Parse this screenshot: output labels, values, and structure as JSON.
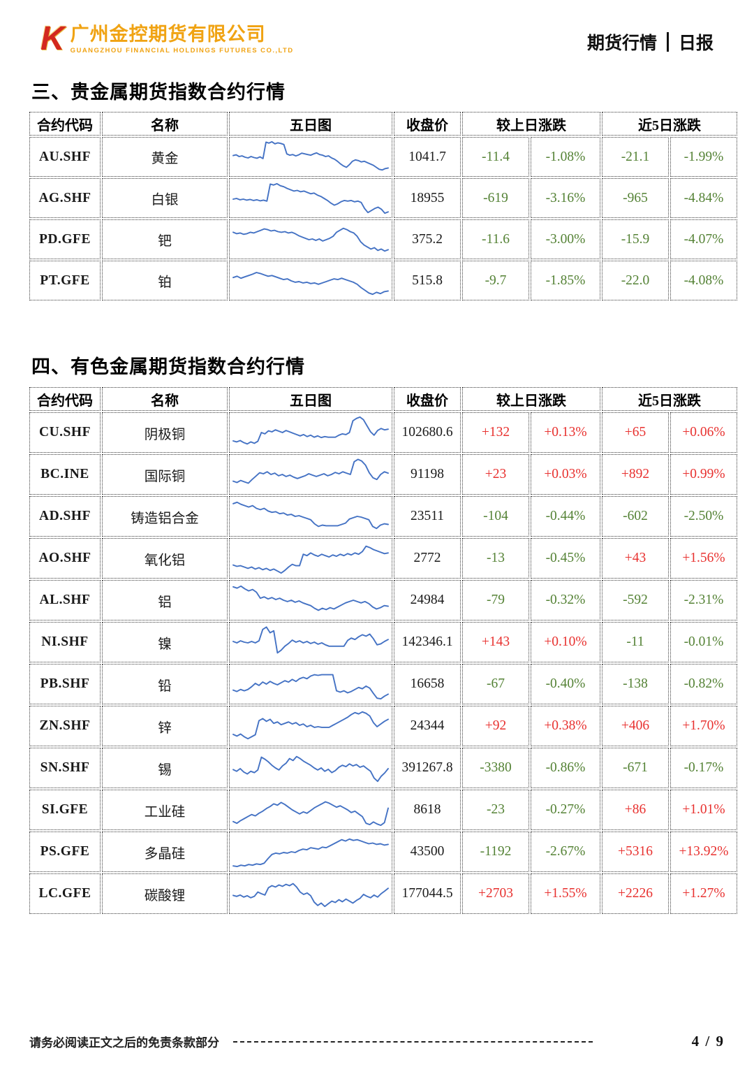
{
  "header": {
    "logo_letter": "K",
    "company_name": "广州金控期货有限公司",
    "company_name_en": "GUANGZHOU FINANCIAL HOLDINGS FUTURES CO.,LTD",
    "report_type": "期货行情",
    "report_period": "日报"
  },
  "colors": {
    "up_red": "#e8312f",
    "down_green": "#548235",
    "sparkline_blue": "#4472c4",
    "brand_gold": "#f0a313",
    "logo_red": "#d3281e"
  },
  "columns": [
    {
      "label": "合约代码",
      "span": 1
    },
    {
      "label": "名称",
      "span": 1
    },
    {
      "label": "五日图",
      "span": 1
    },
    {
      "label": "收盘价",
      "span": 1
    },
    {
      "label": "较上日涨跌",
      "span": 2
    },
    {
      "label": "近5日涨跌",
      "span": 2
    }
  ],
  "sections": [
    {
      "title": "三、贵金属期货指数合约行情",
      "rows": [
        {
          "code": "AU.SHF",
          "name": "黄金",
          "close": "1041.7",
          "chg": "-11.4",
          "chg_pct": "-1.08%",
          "chg5": "-21.1",
          "chg5_pct": "-1.99%",
          "spark": [
            55,
            57,
            52,
            54,
            50,
            48,
            52,
            49,
            47,
            51,
            46,
            95,
            92,
            96,
            90,
            93,
            91,
            88,
            60,
            56,
            58,
            54,
            57,
            62,
            60,
            58,
            56,
            60,
            63,
            58,
            56,
            52,
            54,
            48,
            44,
            38,
            30,
            24,
            20,
            28,
            38,
            42,
            40,
            36,
            38,
            34,
            30,
            26,
            20,
            14,
            12,
            16,
            18
          ]
        },
        {
          "code": "AG.SHF",
          "name": "白银",
          "close": "18955",
          "chg": "-619",
          "chg_pct": "-3.16%",
          "chg5": "-965",
          "chg5_pct": "-4.84%",
          "spark": [
            48,
            50,
            46,
            48,
            45,
            47,
            44,
            46,
            43,
            45,
            42,
            93,
            90,
            94,
            88,
            85,
            80,
            76,
            72,
            74,
            70,
            72,
            68,
            64,
            66,
            60,
            56,
            50,
            44,
            36,
            30,
            34,
            40,
            44,
            42,
            44,
            40,
            42,
            38,
            20,
            8,
            14,
            20,
            24,
            18,
            6,
            10
          ]
        },
        {
          "code": "PD.GFE",
          "name": "钯",
          "close": "375.2",
          "chg": "-11.6",
          "chg_pct": "-3.00%",
          "chg5": "-15.9",
          "chg5_pct": "-4.07%",
          "spark": [
            72,
            68,
            70,
            66,
            68,
            72,
            70,
            74,
            78,
            82,
            80,
            76,
            78,
            74,
            72,
            74,
            70,
            72,
            68,
            62,
            58,
            54,
            50,
            52,
            48,
            52,
            46,
            50,
            54,
            60,
            72,
            78,
            84,
            80,
            74,
            70,
            60,
            44,
            34,
            28,
            22,
            26,
            18,
            22,
            16,
            20
          ]
        },
        {
          "code": "PT.GFE",
          "name": "铂",
          "close": "515.8",
          "chg": "-9.7",
          "chg_pct": "-1.85%",
          "chg5": "-22.0",
          "chg5_pct": "-4.08%",
          "spark": [
            60,
            64,
            58,
            62,
            66,
            70,
            75,
            72,
            68,
            64,
            66,
            62,
            58,
            54,
            56,
            50,
            46,
            48,
            44,
            46,
            42,
            44,
            40,
            44,
            48,
            52,
            56,
            54,
            58,
            54,
            50,
            46,
            40,
            30,
            22,
            14,
            10,
            16,
            12,
            18,
            20
          ]
        }
      ]
    },
    {
      "title": "四、有色金属期货指数合约行情",
      "rows": [
        {
          "code": "CU.SHF",
          "name": "阴极铜",
          "close": "102680.6",
          "chg": "+132",
          "chg_pct": "+0.13%",
          "chg5": "+65",
          "chg5_pct": "+0.06%",
          "spark": [
            25,
            22,
            26,
            20,
            16,
            22,
            18,
            24,
            50,
            46,
            55,
            52,
            58,
            54,
            50,
            56,
            52,
            48,
            44,
            40,
            44,
            38,
            42,
            36,
            40,
            35,
            38,
            36,
            36,
            36,
            42,
            46,
            44,
            50,
            85,
            92,
            96,
            88,
            70,
            52,
            42,
            56,
            62,
            58,
            60
          ]
        },
        {
          "code": "BC.INE",
          "name": "国际铜",
          "close": "91198",
          "chg": "+23",
          "chg_pct": "+0.03%",
          "chg5": "+892",
          "chg5_pct": "+0.99%",
          "spark": [
            30,
            26,
            32,
            28,
            24,
            35,
            45,
            55,
            52,
            58,
            50,
            54,
            46,
            50,
            44,
            48,
            42,
            38,
            42,
            46,
            52,
            48,
            44,
            48,
            52,
            46,
            50,
            56,
            52,
            58,
            54,
            50,
            88,
            95,
            90,
            78,
            55,
            40,
            35,
            50,
            58,
            54
          ]
        },
        {
          "code": "AD.SHF",
          "name": "铸造铝合金",
          "close": "23511",
          "chg": "-104",
          "chg_pct": "-0.44%",
          "chg5": "-602",
          "chg5_pct": "-2.50%",
          "spark": [
            88,
            92,
            86,
            82,
            78,
            82,
            74,
            70,
            74,
            66,
            62,
            64,
            58,
            60,
            54,
            56,
            50,
            52,
            48,
            44,
            40,
            28,
            20,
            24,
            22,
            22,
            22,
            22,
            26,
            30,
            42,
            46,
            50,
            48,
            44,
            40,
            20,
            14,
            24,
            28,
            26
          ]
        },
        {
          "code": "AO.SHF",
          "name": "氧化铝",
          "close": "2772",
          "chg": "-13",
          "chg_pct": "-0.45%",
          "chg5": "+43",
          "chg5_pct": "+1.56%",
          "spark": [
            30,
            26,
            28,
            24,
            20,
            24,
            18,
            22,
            16,
            20,
            14,
            18,
            12,
            6,
            14,
            24,
            32,
            28,
            28,
            62,
            58,
            66,
            60,
            56,
            62,
            58,
            54,
            60,
            56,
            62,
            58,
            64,
            60,
            66,
            62,
            70,
            86,
            82,
            76,
            72,
            68,
            64,
            66
          ]
        },
        {
          "code": "AL.SHF",
          "name": "铝",
          "close": "24984",
          "chg": "-79",
          "chg_pct": "-0.32%",
          "chg5": "-592",
          "chg5_pct": "-2.31%",
          "spark": [
            90,
            86,
            92,
            84,
            78,
            82,
            74,
            56,
            60,
            54,
            58,
            52,
            56,
            50,
            46,
            50,
            44,
            48,
            42,
            38,
            34,
            26,
            20,
            26,
            22,
            28,
            24,
            30,
            36,
            42,
            46,
            50,
            46,
            42,
            46,
            40,
            30,
            24,
            28,
            34,
            32
          ]
        },
        {
          "code": "NI.SHF",
          "name": "镍",
          "close": "142346.1",
          "chg": "+143",
          "chg_pct": "+0.10%",
          "chg5": "-11",
          "chg5_pct": "-0.01%",
          "spark": [
            52,
            48,
            54,
            50,
            48,
            52,
            48,
            54,
            88,
            95,
            78,
            84,
            18,
            26,
            38,
            46,
            56,
            50,
            54,
            48,
            52,
            46,
            50,
            44,
            48,
            42,
            38,
            38,
            38,
            38,
            38,
            55,
            62,
            58,
            66,
            72,
            68,
            74,
            60,
            42,
            45,
            52,
            58
          ]
        },
        {
          "code": "PB.SHF",
          "name": "铅",
          "close": "16658",
          "chg": "-67",
          "chg_pct": "-0.40%",
          "chg5": "-138",
          "chg5_pct": "-0.82%",
          "spark": [
            32,
            28,
            34,
            30,
            34,
            42,
            52,
            46,
            56,
            50,
            58,
            52,
            48,
            54,
            60,
            56,
            64,
            58,
            66,
            70,
            66,
            74,
            78,
            76,
            78,
            78,
            78,
            78,
            30,
            26,
            30,
            24,
            28,
            34,
            40,
            36,
            44,
            38,
            22,
            8,
            6,
            14,
            20
          ]
        },
        {
          "code": "ZN.SHF",
          "name": "锌",
          "close": "24344",
          "chg": "+92",
          "chg_pct": "+0.38%",
          "chg5": "+406",
          "chg5_pct": "+1.70%",
          "spark": [
            25,
            20,
            26,
            18,
            12,
            18,
            24,
            66,
            72,
            64,
            70,
            58,
            62,
            54,
            58,
            62,
            56,
            60,
            52,
            56,
            48,
            52,
            46,
            48,
            46,
            46,
            46,
            52,
            58,
            64,
            70,
            76,
            84,
            90,
            86,
            92,
            88,
            80,
            60,
            48,
            56,
            64,
            70
          ]
        },
        {
          "code": "SN.SHF",
          "name": "锡",
          "close": "391267.8",
          "chg": "-3380",
          "chg_pct": "-0.86%",
          "chg5": "-671",
          "chg5_pct": "-0.17%",
          "spark": [
            45,
            40,
            48,
            38,
            32,
            40,
            36,
            44,
            82,
            76,
            68,
            58,
            50,
            44,
            56,
            64,
            78,
            72,
            84,
            78,
            70,
            64,
            58,
            50,
            44,
            50,
            40,
            46,
            36,
            42,
            52,
            58,
            54,
            62,
            56,
            60,
            52,
            56,
            48,
            40,
            20,
            10,
            25,
            35,
            48
          ]
        },
        {
          "code": "SI.GFE",
          "name": "工业硅",
          "close": "8618",
          "chg": "-23",
          "chg_pct": "-0.27%",
          "chg5": "+86",
          "chg5_pct": "+1.01%",
          "spark": [
            15,
            10,
            18,
            24,
            30,
            36,
            32,
            40,
            46,
            54,
            60,
            68,
            64,
            72,
            66,
            58,
            50,
            44,
            38,
            44,
            40,
            48,
            56,
            62,
            68,
            74,
            70,
            64,
            58,
            62,
            56,
            50,
            42,
            46,
            38,
            30,
            10,
            6,
            14,
            8,
            4,
            12,
            55
          ]
        },
        {
          "code": "PS.GFE",
          "name": "多晶硅",
          "close": "43500",
          "chg": "-1192",
          "chg_pct": "-2.67%",
          "chg5": "+5316",
          "chg5_pct": "+13.92%",
          "spark": [
            8,
            6,
            10,
            8,
            12,
            10,
            14,
            12,
            16,
            30,
            42,
            46,
            44,
            48,
            46,
            50,
            48,
            54,
            58,
            56,
            62,
            60,
            58,
            64,
            62,
            68,
            74,
            80,
            86,
            82,
            88,
            84,
            86,
            82,
            78,
            74,
            76,
            72,
            74,
            70,
            72
          ]
        },
        {
          "code": "LC.GFE",
          "name": "碳酸锂",
          "close": "177044.5",
          "chg": "+2703",
          "chg_pct": "+1.55%",
          "chg5": "+2226",
          "chg5_pct": "+1.27%",
          "spark": [
            45,
            42,
            46,
            40,
            44,
            38,
            42,
            55,
            50,
            46,
            68,
            74,
            70,
            76,
            72,
            78,
            74,
            80,
            70,
            55,
            48,
            52,
            44,
            25,
            15,
            22,
            12,
            20,
            28,
            24,
            32,
            26,
            34,
            28,
            22,
            30,
            36,
            48,
            42,
            38,
            46,
            40,
            50,
            58,
            66
          ]
        }
      ]
    }
  ],
  "footer": {
    "disclaimer": "请务必阅读正文之后的免责条款部分",
    "page": "4 / 9"
  }
}
